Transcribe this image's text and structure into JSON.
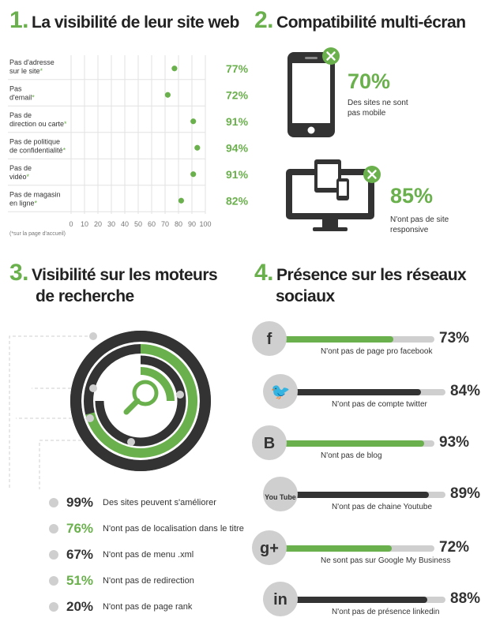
{
  "section1": {
    "number": "1.",
    "title": "La visibilité de leur site web",
    "footnote": "(*sur la page d'accueil)"
  },
  "section2": {
    "number": "2.",
    "title": "Compatibilité multi-écran",
    "stat1": {
      "pct": "70%",
      "text1": "Des sites ne sont",
      "text2": "pas mobile"
    },
    "stat2": {
      "pct": "85%",
      "text1": "N'ont pas de site",
      "text2": "responsive"
    }
  },
  "section3": {
    "number": "3.",
    "title1": "Visibilité sur les moteurs",
    "title2": "de recherche",
    "items": [
      {
        "pct": "99%",
        "label": "Des sites peuvent s'améliorer",
        "color": "#333333"
      },
      {
        "pct": "76%",
        "label": "N'ont pas de localisation dans le titre",
        "color": "#6ab04c"
      },
      {
        "pct": "67%",
        "label": "N'ont pas de menu .xml",
        "color": "#333333"
      },
      {
        "pct": "51%",
        "label": "N'ont pas de redirection",
        "color": "#6ab04c"
      },
      {
        "pct": "20%",
        "label": "N'ont pas de page rank",
        "color": "#333333"
      }
    ]
  },
  "section4": {
    "number": "4.",
    "title1": "Présence sur les réseaux",
    "title2": "sociaux",
    "items": [
      {
        "icon": "facebook-icon",
        "glyph": "f",
        "pct": "73%",
        "label": "N'ont pas de page pro facebook",
        "value": 73,
        "color": "#6ab04c"
      },
      {
        "icon": "twitter-icon",
        "glyph": "🐦",
        "pct": "84%",
        "label": "N'ont pas de compte twitter",
        "value": 84,
        "color": "#333333"
      },
      {
        "icon": "blogger-icon",
        "glyph": "B",
        "pct": "93%",
        "label": "N'ont pas de blog",
        "value": 93,
        "color": "#6ab04c"
      },
      {
        "icon": "youtube-icon",
        "glyph": "You Tube",
        "pct": "89%",
        "label": "N'ont pas de chaine Youtube",
        "value": 89,
        "color": "#333333"
      },
      {
        "icon": "google-plus-icon",
        "glyph": "g+",
        "pct": "72%",
        "label": "Ne sont pas sur Google My Business",
        "value": 72,
        "color": "#6ab04c"
      },
      {
        "icon": "linkedin-icon",
        "glyph": "in",
        "pct": "88%",
        "label": "N'ont pas de présence linkedin",
        "value": 88,
        "color": "#333333"
      }
    ]
  },
  "colors": {
    "green": "#6ab04c",
    "dark": "#333333",
    "grey": "#cfcfcf"
  },
  "chart_data": {
    "type": "scatter",
    "title": "La visibilité de leur site web",
    "categories": [
      [
        "Pas d'adresse",
        "sur le site*"
      ],
      [
        "Pas",
        "d'email*"
      ],
      [
        "Pas de",
        "direction ou carte*"
      ],
      [
        "Pas de politique",
        "de confidentialité*"
      ],
      [
        "Pas de",
        "vidéo*"
      ],
      [
        "Pas de magasin",
        "en ligne*"
      ]
    ],
    "values": [
      77,
      72,
      91,
      94,
      91,
      82
    ],
    "value_labels": [
      "77%",
      "72%",
      "91%",
      "94%",
      "91%",
      "82%"
    ],
    "xticks": [
      "0",
      "10",
      "20",
      "30",
      "40",
      "50",
      "60",
      "70",
      "80",
      "90",
      "100"
    ],
    "xlim": [
      0,
      100
    ],
    "grid": true
  }
}
